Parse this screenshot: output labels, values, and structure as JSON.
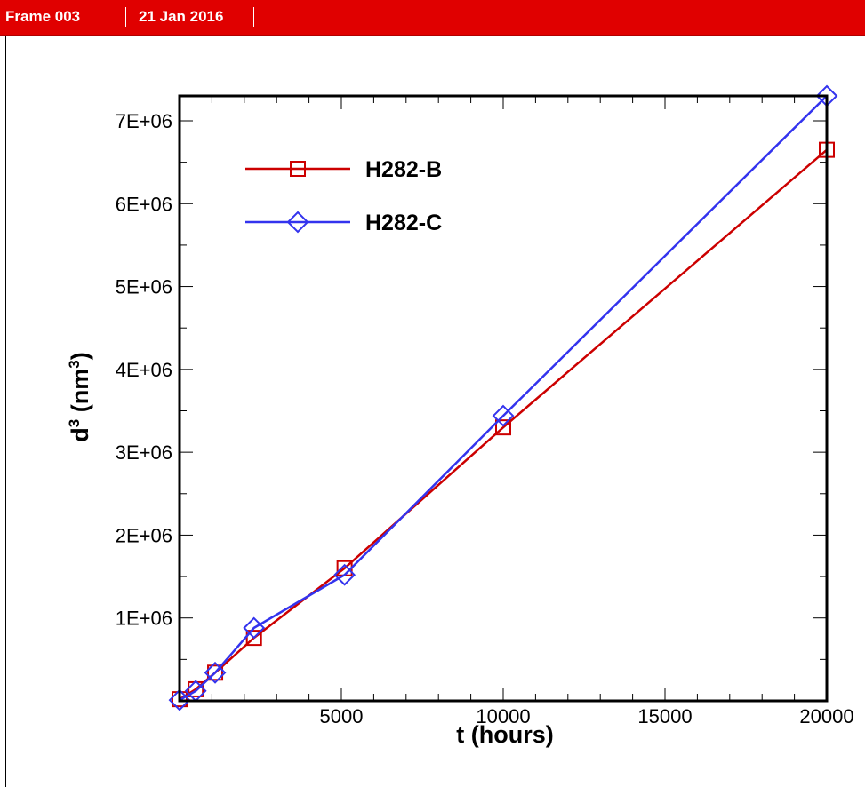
{
  "header": {
    "frame_label": "Frame 003",
    "date": "21 Jan 2016"
  },
  "colors": {
    "header_bg": "#e00000",
    "series_b": "#cc0000",
    "series_c": "#3333ee"
  },
  "chart_data": {
    "type": "line",
    "title": "",
    "xlabel": "t (hours)",
    "ylabel_main": "d",
    "ylabel_exp": "3",
    "ylabel_unit_open": " (nm",
    "ylabel_unit_exp": "3",
    "ylabel_unit_close": ")",
    "xlim": [
      0,
      20000
    ],
    "ylim": [
      0,
      7300000
    ],
    "x_ticks": [
      5000,
      10000,
      15000,
      20000
    ],
    "x_tick_labels": [
      "5000",
      "10000",
      "15000",
      "20000"
    ],
    "y_ticks": [
      1000000,
      2000000,
      3000000,
      4000000,
      5000000,
      6000000,
      7000000
    ],
    "y_tick_labels": [
      "1E+06",
      "2E+06",
      "3E+06",
      "4E+06",
      "5E+06",
      "6E+06",
      "7E+06"
    ],
    "grid": false,
    "legend_position": "top-left",
    "series": [
      {
        "name": "H282-B",
        "marker": "square",
        "color": "#cc0000",
        "x": [
          0,
          500,
          1100,
          2300,
          5100,
          10000,
          20000
        ],
        "y": [
          20000,
          140000,
          340000,
          760000,
          1600000,
          3300000,
          6650000
        ]
      },
      {
        "name": "H282-C",
        "marker": "diamond",
        "color": "#3333ee",
        "x": [
          0,
          500,
          1100,
          2300,
          5100,
          10000,
          20000
        ],
        "y": [
          10000,
          120000,
          340000,
          880000,
          1520000,
          3440000,
          7300000
        ]
      }
    ]
  }
}
